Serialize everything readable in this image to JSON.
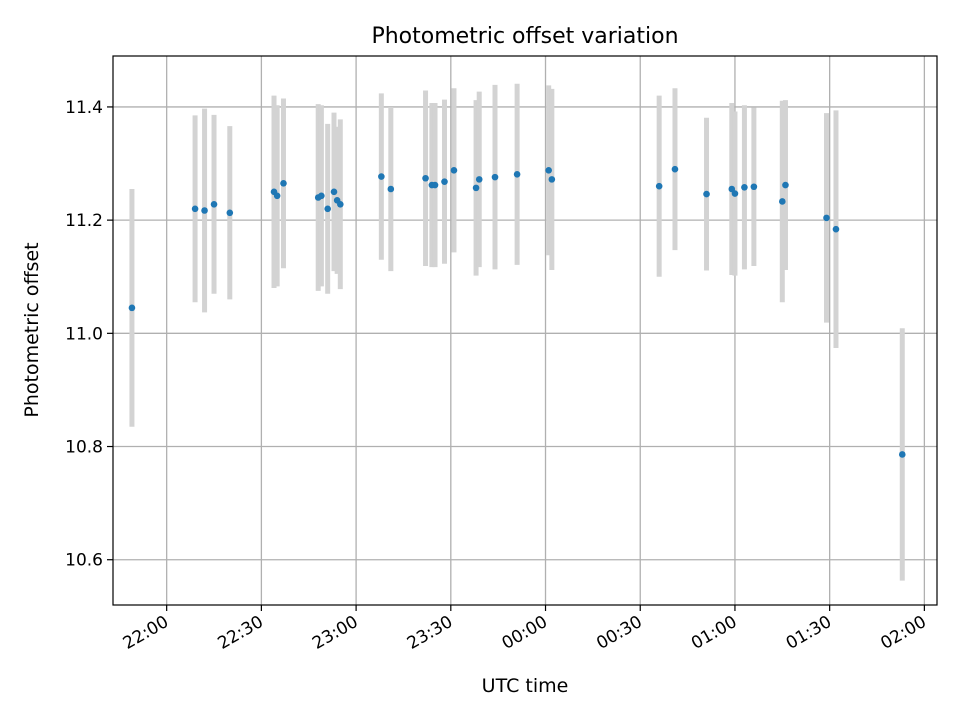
{
  "chart_data": {
    "type": "scatter",
    "title": "Photometric offset variation",
    "xlabel": "UTC time",
    "ylabel": "Photometric offset",
    "xlim": [
      "21:43",
      "02:04"
    ],
    "ylim": [
      10.52,
      11.49
    ],
    "grid": true,
    "x_ticks": [
      "22:00",
      "22:30",
      "23:00",
      "23:30",
      "00:00",
      "00:30",
      "01:00",
      "01:30",
      "02:00"
    ],
    "y_ticks": [
      "10.6",
      "10.8",
      "11.0",
      "11.2",
      "11.4"
    ],
    "colors": {
      "point": "#1f77b4",
      "error_bar": "#d3d3d3",
      "grid": "#b0b0b0"
    },
    "series": [
      {
        "points": [
          {
            "x": "21:49",
            "y": 11.045,
            "err": 0.21
          },
          {
            "x": "22:09",
            "y": 11.22,
            "err": 0.165
          },
          {
            "x": "22:12",
            "y": 11.217,
            "err": 0.18
          },
          {
            "x": "22:15",
            "y": 11.228,
            "err": 0.158
          },
          {
            "x": "22:20",
            "y": 11.213,
            "err": 0.153
          },
          {
            "x": "22:34",
            "y": 11.25,
            "err": 0.17
          },
          {
            "x": "22:35",
            "y": 11.243,
            "err": 0.16
          },
          {
            "x": "22:37",
            "y": 11.265,
            "err": 0.15
          },
          {
            "x": "22:48",
            "y": 11.24,
            "err": 0.165
          },
          {
            "x": "22:49",
            "y": 11.243,
            "err": 0.16
          },
          {
            "x": "22:51",
            "y": 11.22,
            "err": 0.15
          },
          {
            "x": "22:53",
            "y": 11.25,
            "err": 0.14
          },
          {
            "x": "22:54",
            "y": 11.235,
            "err": 0.13
          },
          {
            "x": "22:55",
            "y": 11.228,
            "err": 0.15
          },
          {
            "x": "23:08",
            "y": 11.277,
            "err": 0.147
          },
          {
            "x": "23:11",
            "y": 11.255,
            "err": 0.145
          },
          {
            "x": "23:22",
            "y": 11.274,
            "err": 0.155
          },
          {
            "x": "23:24",
            "y": 11.262,
            "err": 0.145
          },
          {
            "x": "23:25",
            "y": 11.262,
            "err": 0.145
          },
          {
            "x": "23:28",
            "y": 11.268,
            "err": 0.145
          },
          {
            "x": "23:31",
            "y": 11.288,
            "err": 0.145
          },
          {
            "x": "23:38",
            "y": 11.257,
            "err": 0.155
          },
          {
            "x": "23:39",
            "y": 11.272,
            "err": 0.155
          },
          {
            "x": "23:44",
            "y": 11.276,
            "err": 0.163
          },
          {
            "x": "23:51",
            "y": 11.281,
            "err": 0.16
          },
          {
            "x": "00:01",
            "y": 11.288,
            "err": 0.15
          },
          {
            "x": "00:02",
            "y": 11.272,
            "err": 0.16
          },
          {
            "x": "00:36",
            "y": 11.26,
            "err": 0.16
          },
          {
            "x": "00:41",
            "y": 11.29,
            "err": 0.143
          },
          {
            "x": "00:51",
            "y": 11.246,
            "err": 0.135
          },
          {
            "x": "00:59",
            "y": 11.255,
            "err": 0.152
          },
          {
            "x": "01:00",
            "y": 11.247,
            "err": 0.145
          },
          {
            "x": "01:03",
            "y": 11.258,
            "err": 0.145
          },
          {
            "x": "01:06",
            "y": 11.259,
            "err": 0.14
          },
          {
            "x": "01:15",
            "y": 11.233,
            "err": 0.178
          },
          {
            "x": "01:16",
            "y": 11.262,
            "err": 0.15
          },
          {
            "x": "01:29",
            "y": 11.204,
            "err": 0.185
          },
          {
            "x": "01:32",
            "y": 11.184,
            "err": 0.21
          },
          {
            "x": "01:53",
            "y": 10.786,
            "err": 0.223
          }
        ]
      }
    ]
  }
}
